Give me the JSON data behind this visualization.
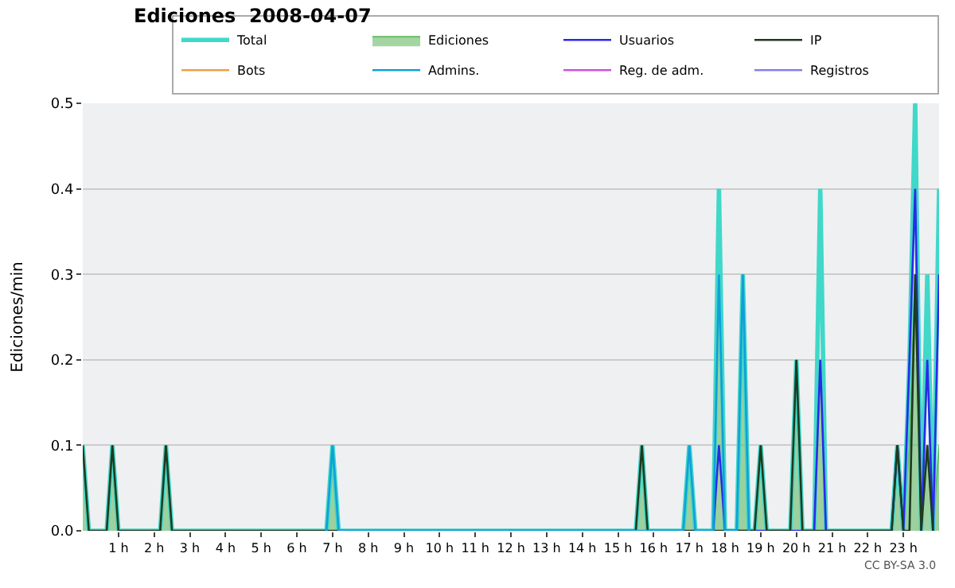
{
  "chart_data": {
    "type": "line",
    "title": "Ediciones  2008-04-07",
    "ylabel": "Ediciones/min",
    "xlim": [
      0,
      24
    ],
    "ylim": [
      0,
      0.5
    ],
    "xticks": [
      {
        "value": 1,
        "label": "1 h"
      },
      {
        "value": 2,
        "label": "2 h"
      },
      {
        "value": 3,
        "label": "3 h"
      },
      {
        "value": 4,
        "label": "4 h"
      },
      {
        "value": 5,
        "label": "5 h"
      },
      {
        "value": 6,
        "label": "6 h"
      },
      {
        "value": 7,
        "label": "7 h"
      },
      {
        "value": 8,
        "label": "8 h"
      },
      {
        "value": 9,
        "label": "9 h"
      },
      {
        "value": 10,
        "label": "10 h"
      },
      {
        "value": 11,
        "label": "11 h"
      },
      {
        "value": 12,
        "label": "12 h"
      },
      {
        "value": 13,
        "label": "13 h"
      },
      {
        "value": 14,
        "label": "14 h"
      },
      {
        "value": 15,
        "label": "15 h"
      },
      {
        "value": 16,
        "label": "16 h"
      },
      {
        "value": 17,
        "label": "17 h"
      },
      {
        "value": 18,
        "label": "18 h"
      },
      {
        "value": 19,
        "label": "19 h"
      },
      {
        "value": 20,
        "label": "20 h"
      },
      {
        "value": 21,
        "label": "21 h"
      },
      {
        "value": 22,
        "label": "22 h"
      },
      {
        "value": 23,
        "label": "23 h"
      }
    ],
    "yticks": [
      {
        "value": 0,
        "label": "0.0"
      },
      {
        "value": 0.1,
        "label": "0.1"
      },
      {
        "value": 0.2,
        "label": "0.2"
      },
      {
        "value": 0.3,
        "label": "0.3"
      },
      {
        "value": 0.4,
        "label": "0.4"
      },
      {
        "value": 0.5,
        "label": "0.5"
      }
    ],
    "grid": "y",
    "legend": "top right",
    "annotations": [
      "CC BY-SA 3.0"
    ],
    "series": [
      {
        "name": "Total",
        "color": "#40d8c8",
        "x": [
          0,
          0.17,
          0.67,
          0.83,
          1.0,
          2.17,
          2.33,
          2.5,
          6.83,
          7.0,
          7.17,
          15.5,
          15.67,
          15.83,
          16.83,
          17.0,
          17.17,
          17.67,
          17.83,
          18.0,
          18.33,
          18.5,
          18.67,
          18.83,
          19.0,
          19.17,
          19.83,
          20.0,
          20.17,
          20.5,
          20.67,
          20.83,
          22.67,
          22.83,
          23.0,
          23.17,
          23.33,
          23.5,
          23.67,
          23.83,
          24
        ],
        "values": [
          0.1,
          0,
          0,
          0.1,
          0,
          0,
          0.1,
          0,
          0,
          0.1,
          0,
          0,
          0.1,
          0,
          0,
          0.1,
          0,
          0,
          0.4,
          0,
          0,
          0.3,
          0,
          0,
          0.1,
          0,
          0,
          0.2,
          0,
          0,
          0.4,
          0,
          0,
          0.1,
          0,
          0.2,
          0.5,
          0,
          0.3,
          0,
          0.4
        ]
      },
      {
        "name": "Ediciones",
        "type": "area",
        "color": "#66bb66",
        "x": [
          0,
          0.17,
          0.67,
          0.83,
          1.0,
          2.17,
          2.33,
          2.5,
          6.83,
          7.0,
          7.17,
          15.5,
          15.67,
          15.83,
          16.83,
          17.0,
          17.17,
          17.67,
          17.83,
          18.0,
          18.33,
          18.5,
          18.67,
          18.83,
          19.0,
          19.17,
          19.83,
          20.0,
          20.17,
          20.5,
          20.67,
          20.83,
          22.67,
          22.83,
          23.0,
          23.17,
          23.33,
          23.5,
          23.67,
          23.83,
          24
        ],
        "values": [
          0.1,
          0,
          0,
          0.1,
          0,
          0,
          0.1,
          0,
          0,
          0.1,
          0,
          0,
          0.1,
          0,
          0,
          0.1,
          0,
          0,
          0.3,
          0,
          0,
          0.3,
          0,
          0,
          0.1,
          0,
          0,
          0.2,
          0,
          0,
          0.2,
          0,
          0,
          0.1,
          0,
          0.1,
          0.3,
          0,
          0.1,
          0,
          0.1
        ]
      },
      {
        "name": "Usuarios",
        "color": "#2a2ae8",
        "x": [
          17.67,
          17.83,
          18.0,
          20.5,
          20.67,
          20.83,
          22.67,
          22.83,
          23.0,
          23.17,
          23.33,
          23.5,
          23.67,
          23.83,
          24
        ],
        "values": [
          0,
          0.1,
          0,
          0,
          0.2,
          0,
          0,
          0.1,
          0,
          0.2,
          0.4,
          0,
          0.2,
          0,
          0.3
        ]
      },
      {
        "name": "IP",
        "color": "#1e3a1e",
        "x": [
          0,
          0.17,
          0.67,
          0.83,
          1.0,
          2.17,
          2.33,
          2.5,
          15.5,
          15.67,
          15.83,
          18.83,
          19.0,
          19.17,
          19.83,
          20.0,
          20.17,
          22.67,
          22.83,
          23.0,
          23.17,
          23.33,
          23.5,
          23.67,
          23.83
        ],
        "values": [
          0.1,
          0,
          0,
          0.1,
          0,
          0,
          0.1,
          0,
          0,
          0.1,
          0,
          0,
          0.1,
          0,
          0,
          0.2,
          0,
          0,
          0.1,
          0,
          0,
          0.3,
          0,
          0.1,
          0
        ]
      },
      {
        "name": "Bots",
        "color": "#f0a040"
      },
      {
        "name": "Admins.",
        "color": "#10a0d8",
        "x": [
          6.83,
          7.0,
          7.17,
          16.83,
          17.0,
          17.17,
          17.67,
          17.83,
          18.0,
          18.33,
          18.5,
          18.67
        ],
        "values": [
          0,
          0.1,
          0,
          0,
          0.1,
          0,
          0,
          0.3,
          0,
          0,
          0.3,
          0
        ]
      },
      {
        "name": "Reg. de adm.",
        "color": "#d050e0"
      },
      {
        "name": "Registros",
        "color": "#8080f0"
      }
    ]
  }
}
